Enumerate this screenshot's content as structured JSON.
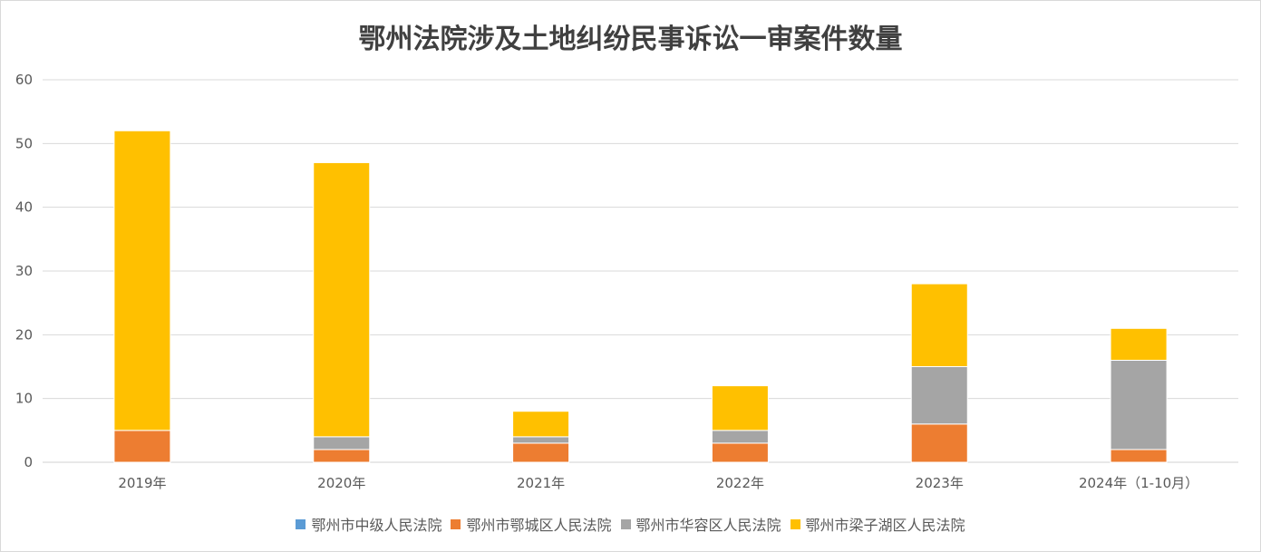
{
  "chart_data": {
    "type": "bar",
    "stacked": true,
    "title": "鄂州法院涉及土地纠纷民事诉讼一审案件数量",
    "categories": [
      "2019年",
      "2020年",
      "2021年",
      "2022年",
      "2023年",
      "2024年（1-10月）"
    ],
    "series": [
      {
        "name": "鄂州市中级人民法院",
        "color": "#5b9bd5",
        "values": [
          0,
          0,
          0,
          0,
          0,
          0
        ]
      },
      {
        "name": "鄂州市鄂城区人民法院",
        "color": "#ed7d31",
        "values": [
          5,
          2,
          3,
          3,
          6,
          2
        ]
      },
      {
        "name": "鄂州市华容区人民法院",
        "color": "#a5a5a5",
        "values": [
          0,
          2,
          1,
          2,
          9,
          14
        ]
      },
      {
        "name": "鄂州市梁子湖区人民法院",
        "color": "#ffc000",
        "values": [
          47,
          43,
          4,
          7,
          13,
          5
        ]
      }
    ],
    "ylim": [
      0,
      60
    ],
    "yticks": [
      0,
      10,
      20,
      30,
      40,
      50,
      60
    ],
    "grid": true,
    "legend_position": "bottom"
  }
}
